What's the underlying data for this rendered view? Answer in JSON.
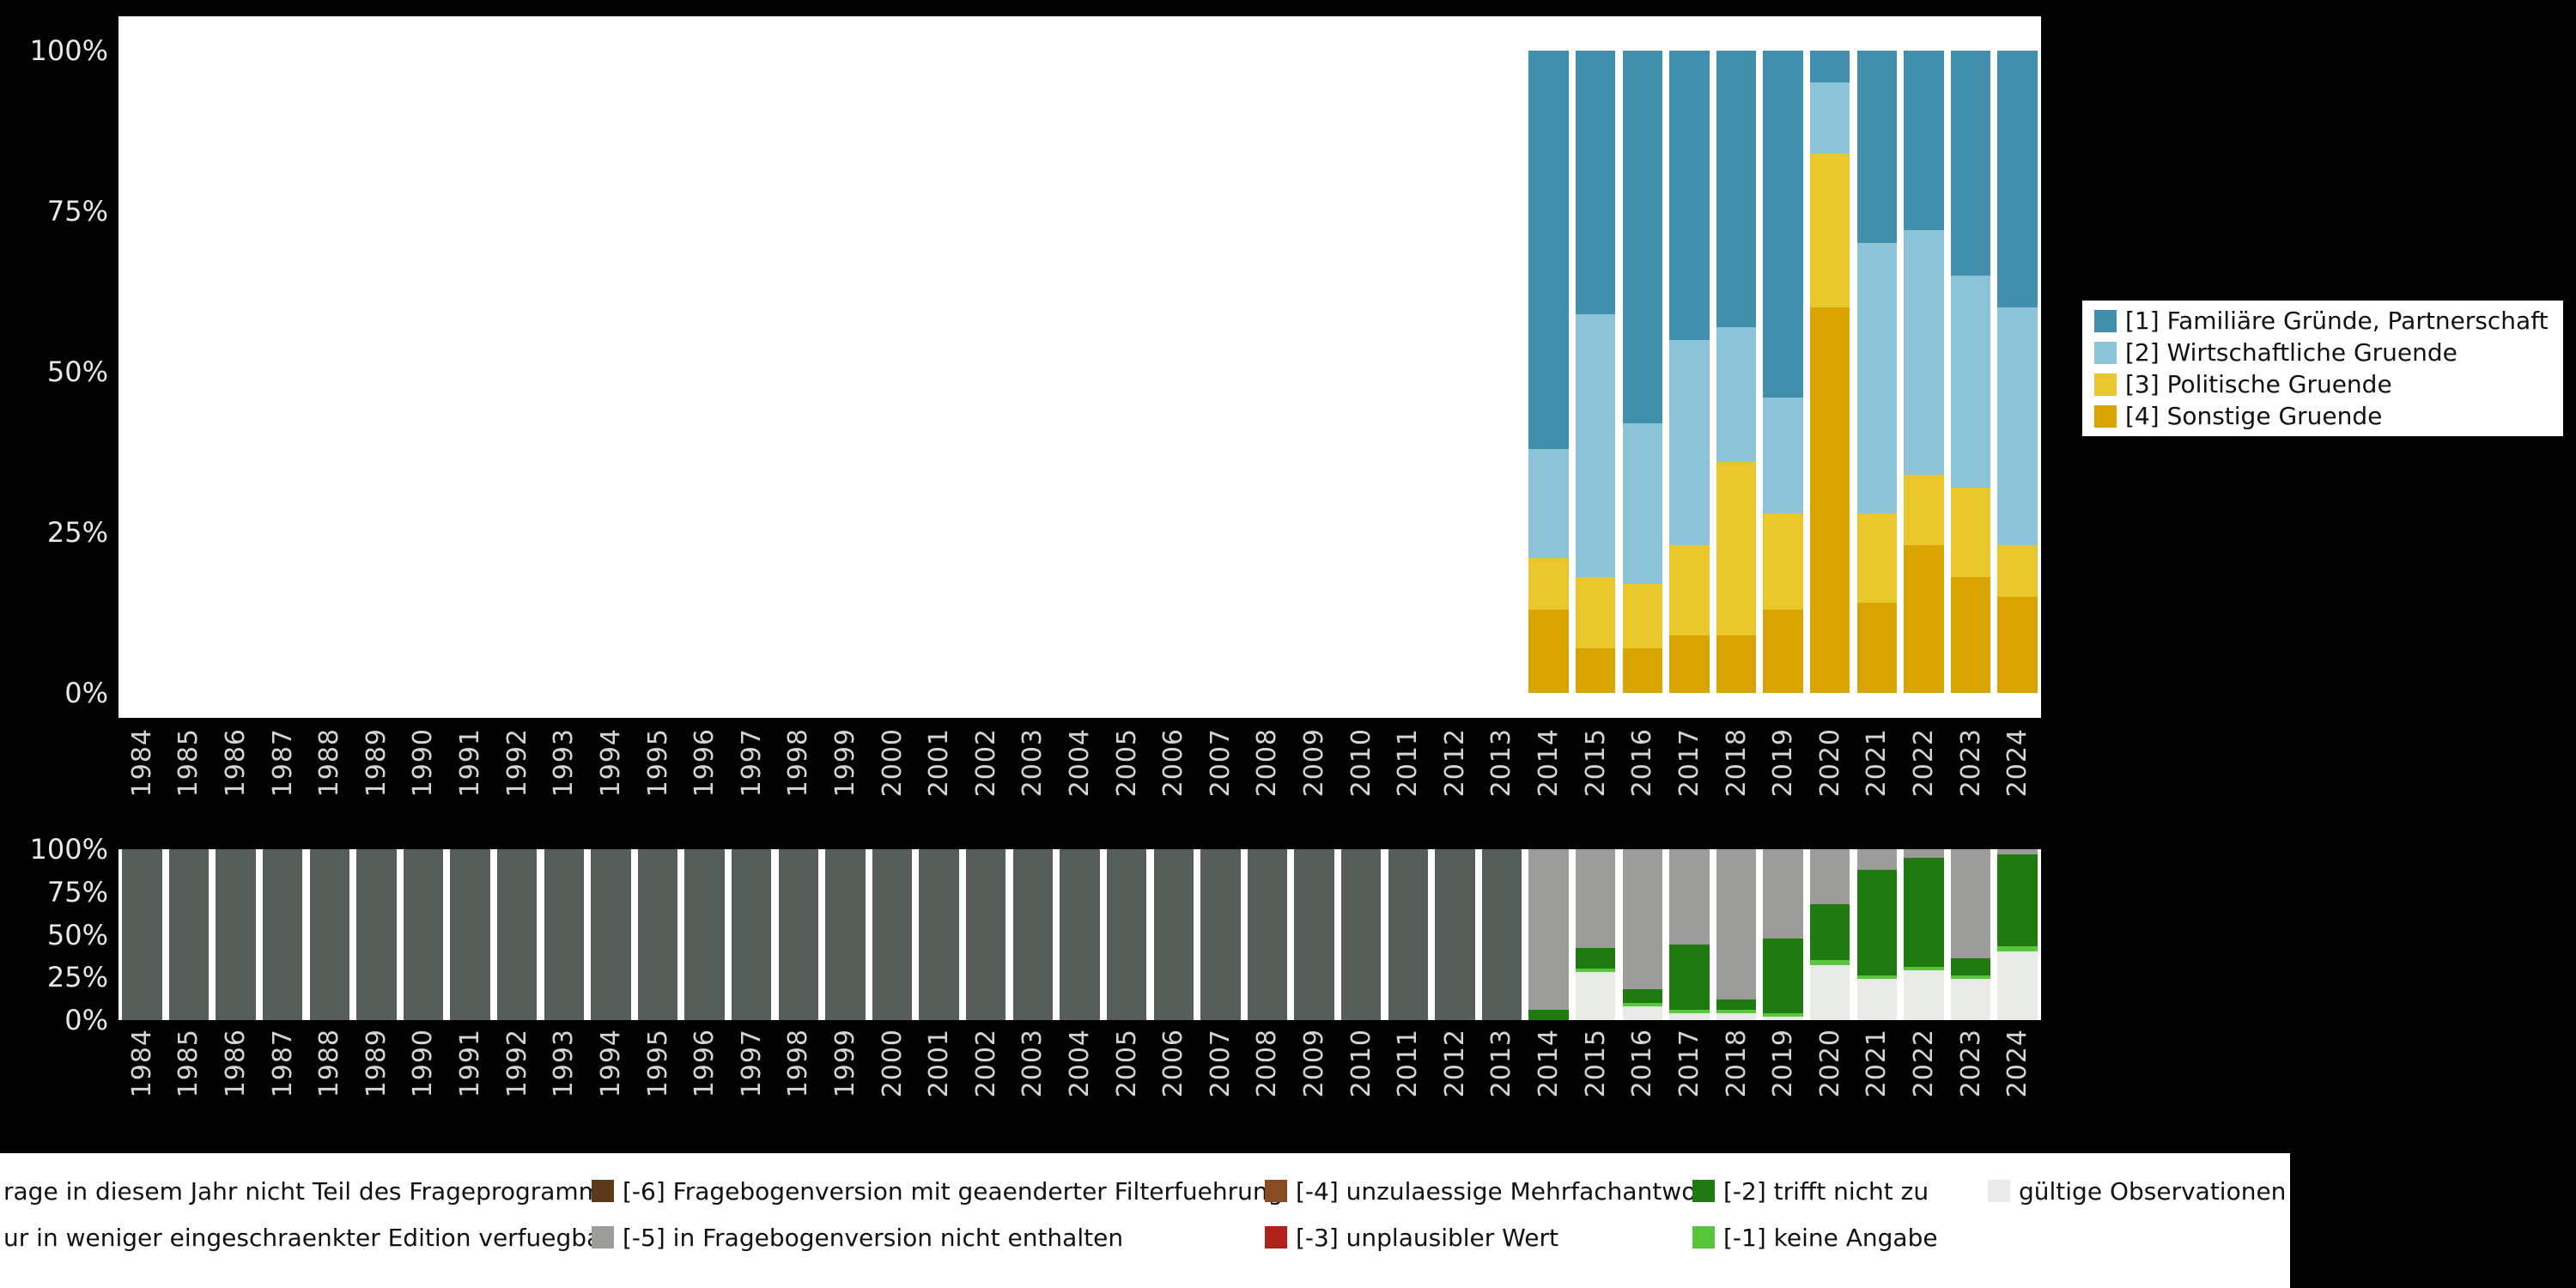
{
  "colors": {
    "background": "#000000",
    "plot_background": "#ffffff",
    "y_axis_text": "#e8e8e8",
    "x_axis_text": "#d4d4d4",
    "legend_text": "#111111"
  },
  "chart_data": [
    {
      "id": "reasons-chart",
      "type": "bar",
      "stacked": true,
      "title": "",
      "xlabel": "",
      "ylabel": "",
      "ylim": [
        0,
        100
      ],
      "grid": false,
      "legend_position": "right",
      "y_ticks": [
        "100%",
        "75%",
        "50%",
        "25%",
        "0%"
      ],
      "categories": [
        1984,
        1985,
        1986,
        1987,
        1988,
        1989,
        1990,
        1991,
        1992,
        1993,
        1994,
        1995,
        1996,
        1997,
        1998,
        1999,
        2000,
        2001,
        2002,
        2003,
        2004,
        2005,
        2006,
        2007,
        2008,
        2009,
        2010,
        2011,
        2012,
        2013,
        2014,
        2015,
        2016,
        2017,
        2018,
        2019,
        2020,
        2021,
        2022,
        2023,
        2024
      ],
      "data_years": [
        2014,
        2015,
        2016,
        2017,
        2018,
        2019,
        2020,
        2021,
        2022,
        2023,
        2024
      ],
      "series": [
        {
          "name": "[4] Sonstige Gruende",
          "color": "#d9a400",
          "values": [
            13,
            7,
            7,
            9,
            9,
            13,
            60,
            14,
            23,
            18,
            15
          ]
        },
        {
          "name": "[3] Politische Gruende",
          "color": "#e9c62c",
          "values": [
            8,
            11,
            10,
            14,
            27,
            15,
            24,
            14,
            11,
            14,
            8
          ]
        },
        {
          "name": "[2] Wirtschaftliche Gruende",
          "color": "#8cc3d6",
          "values": [
            17,
            41,
            25,
            32,
            21,
            18,
            11,
            42,
            38,
            33,
            37
          ]
        },
        {
          "name": "[1] Familiäre Gründe, Partnerschaft",
          "color": "#3f8fad",
          "values": [
            62,
            41,
            58,
            45,
            43,
            54,
            5,
            30,
            28,
            35,
            40
          ]
        }
      ]
    },
    {
      "id": "missing-values-chart",
      "type": "bar",
      "stacked": true,
      "title": "",
      "xlabel": "",
      "ylabel": "",
      "ylim": [
        0,
        100
      ],
      "grid": false,
      "y_ticks": [
        "100%",
        "75%",
        "50%",
        "25%",
        "0%"
      ],
      "categories": [
        1984,
        1985,
        1986,
        1987,
        1988,
        1989,
        1990,
        1991,
        1992,
        1993,
        1994,
        1995,
        1996,
        1997,
        1998,
        1999,
        2000,
        2001,
        2002,
        2003,
        2004,
        2005,
        2006,
        2007,
        2008,
        2009,
        2010,
        2011,
        2012,
        2013,
        2014,
        2015,
        2016,
        2017,
        2018,
        2019,
        2020,
        2021,
        2022,
        2023,
        2024
      ],
      "series": [
        {
          "name": "gültige Observationen",
          "color": "#e9ece6",
          "values": [
            0,
            0,
            0,
            0,
            0,
            0,
            0,
            0,
            0,
            0,
            0,
            0,
            0,
            0,
            0,
            0,
            0,
            0,
            0,
            0,
            0,
            0,
            0,
            0,
            0,
            0,
            0,
            0,
            0,
            0,
            0,
            28,
            8,
            4,
            4,
            2,
            32,
            24,
            29,
            24,
            40
          ]
        },
        {
          "name": "[-1] keine Angabe",
          "color": "#57c63a",
          "values": [
            0,
            0,
            0,
            0,
            0,
            0,
            0,
            0,
            0,
            0,
            0,
            0,
            0,
            0,
            0,
            0,
            0,
            0,
            0,
            0,
            0,
            0,
            0,
            0,
            0,
            0,
            0,
            0,
            0,
            0,
            0,
            2,
            2,
            2,
            2,
            2,
            3,
            2,
            2,
            2,
            3
          ]
        },
        {
          "name": "[-2] trifft nicht zu",
          "color": "#1f7a0f",
          "values": [
            0,
            0,
            0,
            0,
            0,
            0,
            0,
            0,
            0,
            0,
            0,
            0,
            0,
            0,
            0,
            0,
            0,
            0,
            0,
            0,
            0,
            0,
            0,
            0,
            0,
            0,
            0,
            0,
            0,
            0,
            6,
            12,
            8,
            38,
            6,
            44,
            33,
            62,
            64,
            10,
            54
          ]
        },
        {
          "name": "[-5] in Fragebogenversion nicht enthalten",
          "color": "#9c9c98",
          "values": [
            0,
            0,
            0,
            0,
            0,
            0,
            0,
            0,
            0,
            0,
            0,
            0,
            0,
            0,
            0,
            0,
            0,
            0,
            0,
            0,
            0,
            0,
            0,
            0,
            0,
            0,
            0,
            0,
            0,
            0,
            94,
            58,
            82,
            56,
            88,
            52,
            32,
            12,
            5,
            64,
            3
          ]
        },
        {
          "name": "Frage in diesem Jahr nicht Teil des Frageprogramms",
          "color": "#565e59",
          "values": [
            100,
            100,
            100,
            100,
            100,
            100,
            100,
            100,
            100,
            100,
            100,
            100,
            100,
            100,
            100,
            100,
            100,
            100,
            100,
            100,
            100,
            100,
            100,
            100,
            100,
            100,
            100,
            100,
            100,
            100,
            0,
            0,
            0,
            0,
            0,
            0,
            0,
            0,
            0,
            0,
            0
          ]
        }
      ]
    }
  ],
  "missing_legend": {
    "rows": [
      [
        {
          "color": null,
          "label": "rage in diesem Jahr nicht Teil des Frageprogramms"
        },
        {
          "color": "#5a3a18",
          "label": "[-6] Fragebogenversion mit geaenderter Filterfuehrung"
        },
        {
          "color": "#8a4a20",
          "label": "[-4] unzulaessige Mehrfachantwort"
        },
        {
          "color": "#1f7a0f",
          "label": "[-2] trifft nicht zu"
        },
        {
          "color": "#e9ece6",
          "label": "gültige Observationen"
        }
      ],
      [
        {
          "color": null,
          "label": "ur in weniger eingeschraenkter Edition verfuegbar"
        },
        {
          "color": "#9c9c98",
          "label": "[-5] in Fragebogenversion nicht enthalten"
        },
        {
          "color": "#b2201c",
          "label": "[-3] unplausibler Wert"
        },
        {
          "color": "#57c63a",
          "label": "[-1] keine Angabe"
        }
      ]
    ]
  }
}
